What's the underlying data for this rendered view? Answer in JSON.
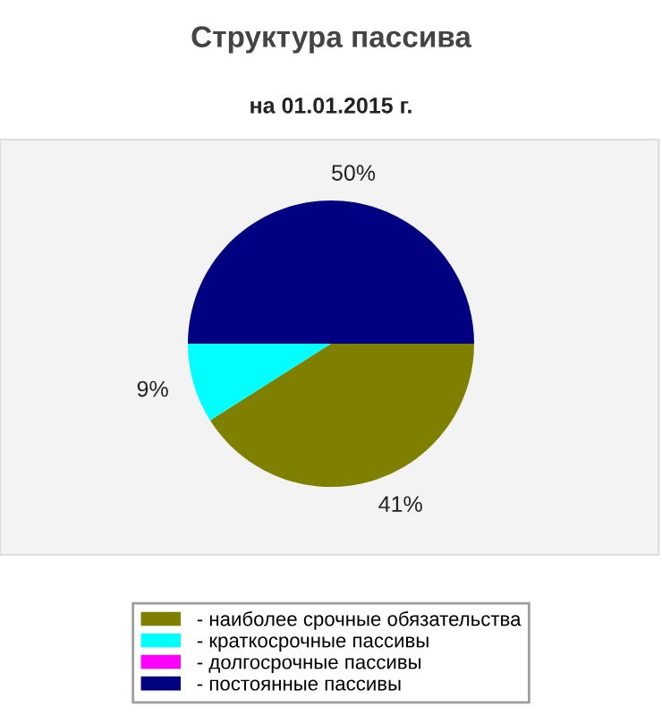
{
  "chart_data": {
    "type": "pie",
    "title": "Структура пассива",
    "subtitle": "на 01.01.2015 г.",
    "categories": [
      "- наиболее срочные обязательства",
      "- краткосрочные пассивы",
      "- долгосрочные пассивы",
      "- постоянные пассивы"
    ],
    "values": [
      41,
      9,
      0,
      50
    ],
    "colors": [
      "#808000",
      "#00ffff",
      "#ff00ff",
      "#000080"
    ],
    "value_labels": [
      "41%",
      "9%",
      null,
      "50%"
    ],
    "legend": "bottom"
  }
}
